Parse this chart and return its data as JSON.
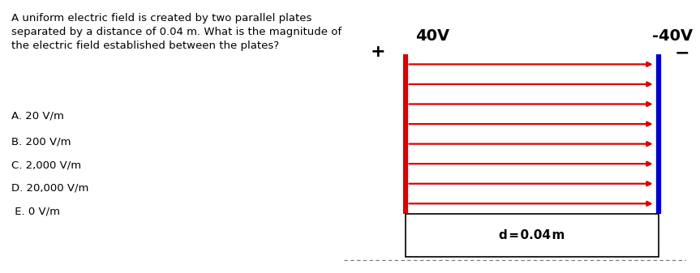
{
  "background_color": "#ffffff",
  "question_text": "A uniform electric field is created by two parallel plates\nseparated by a distance of 0.04 m. What is the magnitude of\nthe electric field established between the plates?",
  "choices": [
    "A. 20 V/m",
    "B. 200 V/m",
    "C. 2,000 V/m",
    "D. 20,000 V/m",
    " E. 0 V/m"
  ],
  "label_positive": "40V",
  "label_negative": "-40V",
  "label_plus": "+",
  "label_minus": "−",
  "label_distance": "d = 0.04 m",
  "plate_left_color": "#dd0000",
  "plate_right_color": "#0000cc",
  "arrow_color": "#dd0000",
  "num_arrows": 8,
  "text_fontsize": 9.5,
  "choice_fontsize": 9.5,
  "label_fontsize": 14,
  "plus_minus_fontsize": 16,
  "dist_label_fontsize": 11
}
